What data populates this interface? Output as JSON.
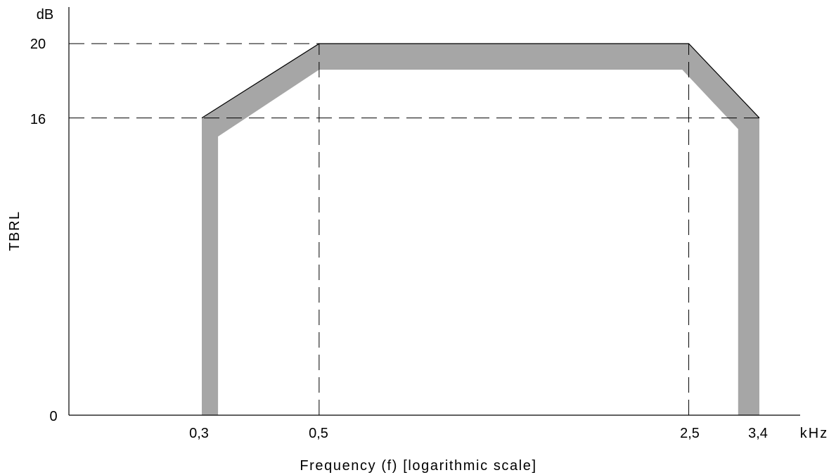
{
  "chart_data": {
    "type": "area",
    "title": "",
    "xlabel": "Frequency (f) [logarithmic scale]",
    "ylabel": "TBRL",
    "x_unit": "kHz",
    "y_unit": "dB",
    "x_scale": "log",
    "x_ticks": [
      {
        "value": 0.3,
        "label": "0,3"
      },
      {
        "value": 0.5,
        "label": "0,5"
      },
      {
        "value": 2.5,
        "label": "2,5"
      },
      {
        "value": 3.4,
        "label": "3,4"
      }
    ],
    "y_ticks": [
      {
        "value": 0,
        "label": "0"
      },
      {
        "value": 16,
        "label": "16"
      },
      {
        "value": 20,
        "label": "20"
      }
    ],
    "reference_lines": {
      "horizontal_dashed": [
        16,
        20
      ],
      "vertical_dashed": [
        0.5,
        2.5
      ]
    },
    "mask_outer_boundary": [
      {
        "x": 0.3,
        "y": 0
      },
      {
        "x": 0.3,
        "y": 16
      },
      {
        "x": 0.5,
        "y": 20
      },
      {
        "x": 2.5,
        "y": 20
      },
      {
        "x": 3.4,
        "y": 16
      },
      {
        "x": 3.4,
        "y": 0
      }
    ],
    "mask_inner_boundary": [
      {
        "x": 0.322,
        "y": 0
      },
      {
        "x": 0.322,
        "y": 15
      },
      {
        "x": 0.5,
        "y": 18.6
      },
      {
        "x": 2.43,
        "y": 18.6
      },
      {
        "x": 3.1,
        "y": 15.4
      },
      {
        "x": 3.1,
        "y": 0
      }
    ],
    "band_color": "#a6a6a6",
    "line_color": "#000000",
    "grid": false
  }
}
